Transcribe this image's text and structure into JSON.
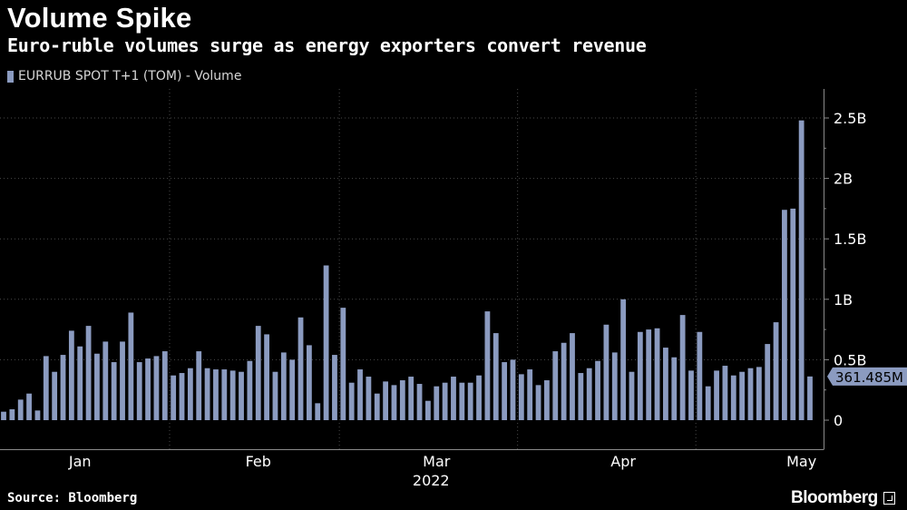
{
  "title": "Volume Spike",
  "subtitle": "Euro-ruble volumes surge as energy exporters convert revenue",
  "source": "Source: Bloomberg",
  "brand": "Bloomberg",
  "chart_data": {
    "type": "bar",
    "series": [
      {
        "name": "EURRUB SPOT T+1 (TOM) - Volume",
        "color": "#8b9bc0",
        "values": [
          0.07,
          0.09,
          0.17,
          0.22,
          0.08,
          0.53,
          0.4,
          0.54,
          0.74,
          0.61,
          0.78,
          0.55,
          0.65,
          0.48,
          0.65,
          0.89,
          0.48,
          0.51,
          0.53,
          0.57,
          0.37,
          0.39,
          0.43,
          0.57,
          0.43,
          0.42,
          0.42,
          0.41,
          0.4,
          0.49,
          0.78,
          0.71,
          0.4,
          0.56,
          0.5,
          0.85,
          0.62,
          0.14,
          1.28,
          0.54,
          0.93,
          0.31,
          0.42,
          0.36,
          0.22,
          0.32,
          0.29,
          0.33,
          0.36,
          0.3,
          0.16,
          0.28,
          0.31,
          0.36,
          0.31,
          0.31,
          0.37,
          0.9,
          0.72,
          0.48,
          0.5,
          0.38,
          0.42,
          0.29,
          0.33,
          0.57,
          0.64,
          0.72,
          0.39,
          0.43,
          0.49,
          0.79,
          0.56,
          1.0,
          0.4,
          0.73,
          0.75,
          0.76,
          0.6,
          0.52,
          0.87,
          0.41,
          0.73,
          0.28,
          0.41,
          0.45,
          0.37,
          0.4,
          0.43,
          0.44,
          0.63,
          0.81,
          1.74,
          1.75,
          2.48,
          0.361485
        ]
      }
    ],
    "y_unit": "B",
    "ylim": [
      0,
      2.6
    ],
    "yticks": [
      0,
      0.5,
      1,
      1.5,
      2,
      2.5
    ],
    "ytick_labels": [
      "0",
      "0.5B",
      "1B",
      "1.5B",
      "2B",
      "2.5B"
    ],
    "month_labels": [
      {
        "label": "Jan",
        "index": 9
      },
      {
        "label": "Feb",
        "index": 30
      },
      {
        "label": "Mar",
        "index": 51
      },
      {
        "label": "Apr",
        "index": 73
      },
      {
        "label": "May",
        "index": 94
      }
    ],
    "month_separators": [
      20,
      40,
      61,
      82
    ],
    "year_label": "2022",
    "last_value_label": "361.485M",
    "grid": "horizontal-dotted",
    "y_axis_position": "right"
  }
}
